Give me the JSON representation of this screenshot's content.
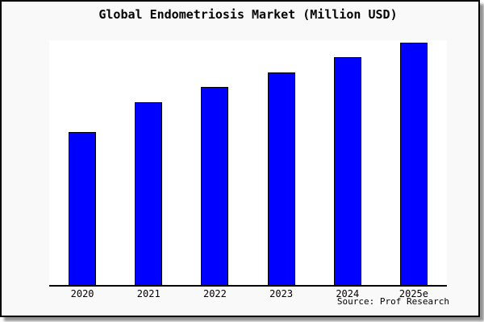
{
  "title": "Global Endometriosis Market (Million USD)",
  "source": "Source: Prof Research",
  "colors": {
    "figure_background": "#f9f9f9",
    "plot_background": "#ffffff",
    "bar_fill": "#0000ff",
    "bar_stroke": "#000000",
    "axis": "#000000",
    "text": "#000000"
  },
  "chart_data": {
    "type": "bar",
    "title": "Global Endometriosis Market (Million USD)",
    "units": "Million USD",
    "categories": [
      "2020",
      "2021",
      "2022",
      "2023",
      "2024",
      "2025e"
    ],
    "values": [
      63,
      75.5,
      81.8,
      87.8,
      94,
      100
    ],
    "value_basis": "no y-axis tick labels shown; values estimated from bar heights, normalized to 2025e = 100",
    "xlabel": "",
    "ylabel": "",
    "ylim": [
      0,
      101
    ],
    "grid": false,
    "legend": null,
    "annotations": [
      "Source: Prof Research"
    ]
  }
}
